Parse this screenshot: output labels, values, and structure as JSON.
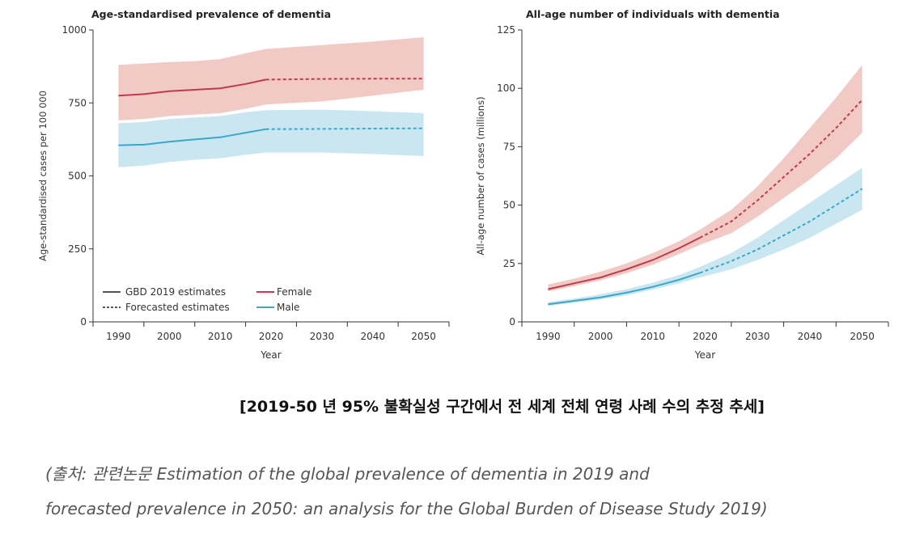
{
  "chart_data": [
    {
      "type": "line",
      "title": "Age-standardised prevalence of dementia",
      "xlabel": "Year",
      "ylabel": "Age-standardised cases per 100 000",
      "xlim": [
        1985,
        2055
      ],
      "ylim": [
        0,
        1000
      ],
      "xticks": [
        1990,
        2000,
        2010,
        2020,
        2030,
        2040,
        2050
      ],
      "yticks": [
        0,
        250,
        500,
        750,
        1000
      ],
      "ytick_labels": [
        "0",
        "250",
        "500",
        "750",
        "1000"
      ],
      "legend": {
        "position": "bottom-left",
        "items": [
          {
            "label": "GBD 2019 estimates",
            "style": "solid-gray"
          },
          {
            "label": "Forecasted estimates",
            "style": "dashed-gray"
          },
          {
            "label": "Female",
            "style": "solid-female"
          },
          {
            "label": "Male",
            "style": "solid-male"
          }
        ]
      },
      "series": [
        {
          "name": "Female",
          "color": "#c0394f",
          "band_color": "#e8a9a3",
          "x": [
            1990,
            1995,
            2000,
            2005,
            2010,
            2015,
            2019
          ],
          "y": [
            775,
            780,
            790,
            795,
            800,
            815,
            830
          ],
          "lower": [
            690,
            695,
            705,
            710,
            715,
            730,
            745
          ],
          "upper": [
            880,
            885,
            890,
            893,
            900,
            920,
            935
          ],
          "forecast_x": [
            2019,
            2030,
            2040,
            2050
          ],
          "forecast_y": [
            830,
            832,
            833,
            833
          ],
          "forecast_lower": [
            745,
            755,
            775,
            795
          ],
          "forecast_upper": [
            935,
            948,
            960,
            975
          ]
        },
        {
          "name": "Male",
          "color": "#3aa7cc",
          "band_color": "#a9d9e8",
          "x": [
            1990,
            1995,
            2000,
            2005,
            2010,
            2015,
            2019
          ],
          "y": [
            605,
            607,
            617,
            625,
            632,
            648,
            660
          ],
          "lower": [
            530,
            535,
            548,
            555,
            560,
            572,
            580
          ],
          "upper": [
            680,
            685,
            695,
            700,
            705,
            718,
            725
          ],
          "forecast_x": [
            2019,
            2030,
            2040,
            2050
          ],
          "forecast_y": [
            660,
            661,
            662,
            663
          ],
          "forecast_lower": [
            580,
            580,
            575,
            568
          ],
          "forecast_upper": [
            725,
            727,
            722,
            715
          ]
        }
      ]
    },
    {
      "type": "line",
      "title": "All-age number of individuals with dementia",
      "xlabel": "Year",
      "ylabel": "All-age number of cases (millions)",
      "xlim": [
        1985,
        2055
      ],
      "ylim": [
        0,
        125
      ],
      "xticks": [
        1990,
        2000,
        2010,
        2020,
        2030,
        2040,
        2050
      ],
      "yticks": [
        0,
        25,
        50,
        75,
        100,
        125
      ],
      "ytick_labels": [
        "0",
        "25",
        "50",
        "75",
        "100",
        "125"
      ],
      "series": [
        {
          "name": "Female",
          "color": "#c0394f",
          "band_color": "#e8a9a3",
          "x": [
            1990,
            1995,
            2000,
            2005,
            2010,
            2015,
            2019
          ],
          "y": [
            14,
            16.5,
            19,
            22.5,
            26.5,
            31.5,
            36
          ],
          "lower": [
            13,
            15.3,
            17.8,
            20.8,
            24.5,
            29,
            33
          ],
          "upper": [
            16,
            18.5,
            21.5,
            25,
            29.5,
            34.5,
            39.5
          ],
          "forecast_x": [
            2019,
            2025,
            2030,
            2035,
            2040,
            2045,
            2050
          ],
          "forecast_y": [
            36,
            43,
            52,
            62,
            72,
            83,
            95
          ],
          "forecast_lower": [
            33,
            38,
            45,
            53,
            61,
            70,
            81
          ],
          "forecast_upper": [
            39.5,
            48,
            58,
            70,
            83,
            96,
            110
          ]
        },
        {
          "name": "Male",
          "color": "#3aa7cc",
          "band_color": "#a9d9e8",
          "x": [
            1990,
            1995,
            2000,
            2005,
            2010,
            2015,
            2019
          ],
          "y": [
            7.5,
            9,
            10.5,
            12.5,
            15,
            18,
            21
          ],
          "lower": [
            6.8,
            8.2,
            9.6,
            11.4,
            13.8,
            16.5,
            19
          ],
          "upper": [
            8.5,
            10,
            11.8,
            14,
            16.8,
            20,
            23.5
          ],
          "forecast_x": [
            2019,
            2025,
            2030,
            2035,
            2040,
            2045,
            2050
          ],
          "forecast_y": [
            21,
            26,
            31,
            37,
            43,
            50,
            57
          ],
          "forecast_lower": [
            19,
            22.5,
            26.5,
            31,
            36,
            42,
            48
          ],
          "forecast_upper": [
            23.5,
            29.5,
            36,
            43.5,
            51,
            58.5,
            66
          ]
        }
      ]
    }
  ],
  "caption": "[2019-50 년 95% 불확실성 구간에서 전 세계 전체 연령 사례 수의 추정 추세]",
  "source": {
    "line1": "(출처: 관련논문 Estimation of the global prevalence of dementia in 2019 and",
    "line2": "forecasted prevalence in 2050: an analysis for the Global Burden of Disease Study 2019)"
  },
  "colors": {
    "female": "#c0394f",
    "male": "#3aa7cc",
    "female_band": "#e8a9a3",
    "male_band": "#a9d9e8",
    "axis": "#333333",
    "legend_gray": "#555555"
  }
}
